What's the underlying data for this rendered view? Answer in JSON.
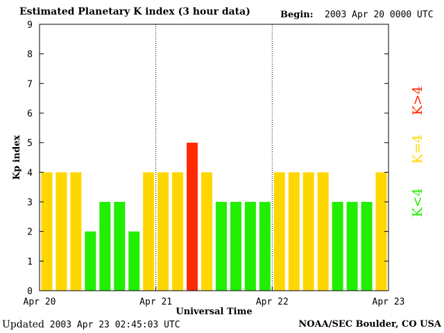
{
  "header": {
    "title": "Estimated Planetary K index (3 hour data)",
    "begin_label": "Begin:",
    "begin_value": "2003 Apr 20 0000 UTC"
  },
  "footer": {
    "updated_label": "Updated",
    "updated_value": "2003 Apr 23 02:45:03 UTC",
    "credit": "NOAA/SEC Boulder, CO USA"
  },
  "legend": [
    {
      "label": "K>4",
      "color": "#ff2a00"
    },
    {
      "label": "K=4",
      "color": "#ffd700"
    },
    {
      "label": "K<4",
      "color": "#22ee00"
    }
  ],
  "chart_data": {
    "type": "bar",
    "title": "Estimated Planetary K index (3 hour data)",
    "xlabel": "Universal Time",
    "ylabel": "Kp index",
    "ylim": [
      0,
      9
    ],
    "yticks": [
      0,
      1,
      2,
      3,
      4,
      5,
      6,
      7,
      8,
      9
    ],
    "x_tick_labels": [
      "Apr 20",
      "Apr 21",
      "Apr 22",
      "Apr 23"
    ],
    "day_divider_lines": "dotted",
    "bars_per_day": 8,
    "values": [
      4,
      4,
      4,
      2,
      3,
      3,
      2,
      4,
      4,
      4,
      5,
      4,
      3,
      3,
      3,
      3,
      4,
      4,
      4,
      4,
      3,
      3,
      3,
      4
    ],
    "colors": {
      "below_4": "#22ee00",
      "equal_4": "#ffd700",
      "above_4": "#ff2a00"
    }
  }
}
